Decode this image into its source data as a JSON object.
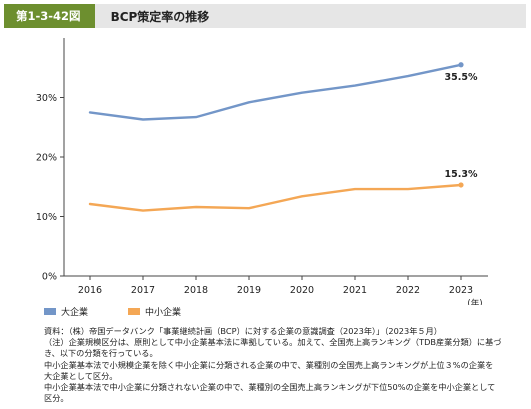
{
  "header": {
    "figure_label": "第1-3-42図",
    "title": "BCP策定率の推移"
  },
  "chart_data": {
    "type": "line",
    "x": [
      "2016",
      "2017",
      "2018",
      "2019",
      "2020",
      "2021",
      "2022",
      "2023"
    ],
    "x_unit": "(年)",
    "ylim": [
      0,
      0.4
    ],
    "yticks": [
      "0%",
      "10%",
      "20%",
      "30%"
    ],
    "ytick_values": [
      0,
      0.1,
      0.2,
      0.3
    ],
    "grid": false,
    "legend_placement": "bottom-left",
    "series": [
      {
        "name": "大企業",
        "color": "#7396c8",
        "values": [
          0.275,
          0.263,
          0.267,
          0.292,
          0.308,
          0.32,
          0.336,
          0.355
        ],
        "end_label": "35.5%"
      },
      {
        "name": "中小企業",
        "color": "#f4a755",
        "values": [
          0.121,
          0.11,
          0.116,
          0.114,
          0.134,
          0.146,
          0.146,
          0.153
        ],
        "end_label": "15.3%"
      }
    ]
  },
  "notes": [
    "資料：（株）帝国データバンク「事業継続計画（BCP）に対する企業の意識調査（2023年）」（2023年５月）",
    "（注）企業規模区分は、原則として中小企業基本法に準拠している。加えて、全国売上高ランキング（TDB産業分類）に基づ",
    "き、以下の分類を行っている。",
    "中小企業基本法で小規模企業を除く中小企業に分類される企業の中で、業種別の全国売上高ランキングが上位３%の企業を",
    "大企業として区分。",
    "中小企業基本法で中小企業に分類されない企業の中で、業種別の全国売上高ランキングが下位50%の企業を中小企業として",
    "区分。"
  ]
}
